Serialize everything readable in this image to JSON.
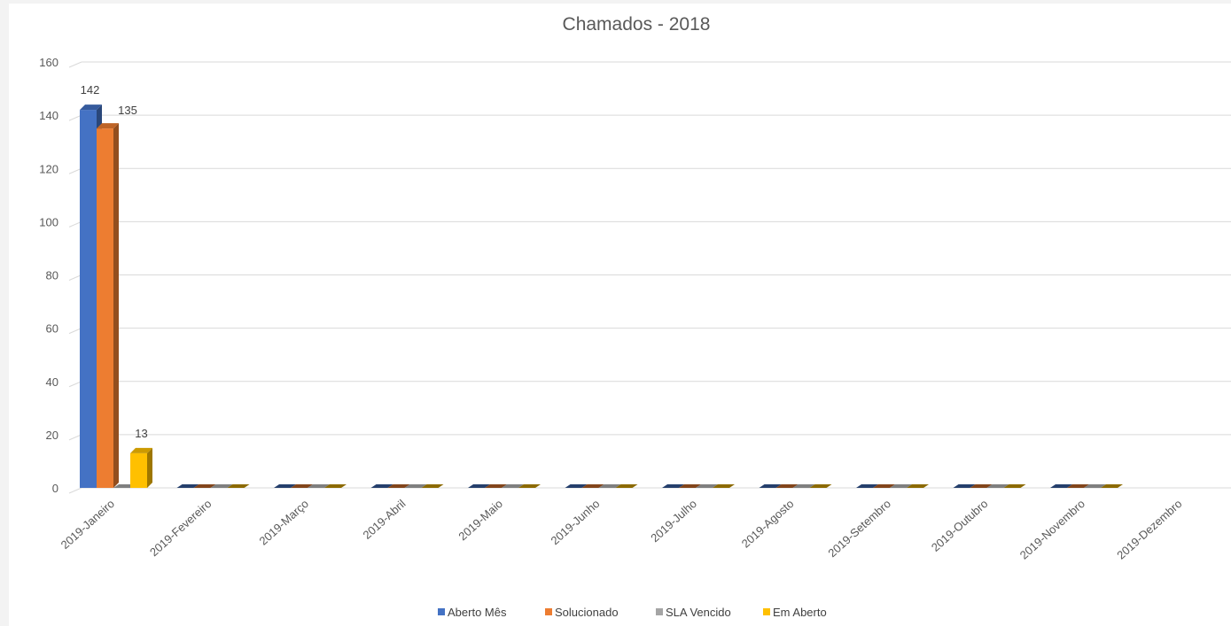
{
  "chart_data": {
    "type": "bar",
    "variant": "3d-clustered-column",
    "title": "Chamados - 2018",
    "xlabel": "",
    "ylabel": "",
    "ylim": [
      0,
      160
    ],
    "y_ticks": [
      0,
      20,
      40,
      60,
      80,
      100,
      120,
      140,
      160
    ],
    "grid": true,
    "legend_position": "bottom",
    "categories": [
      "2019-Janeiro",
      "2019-Fevereiro",
      "2019-Março",
      "2019-Abril",
      "2019-Maio",
      "2019-Junho",
      "2019-Julho",
      "2019-Agosto",
      "2019-Setembro",
      "2019-Outubro",
      "2019-Novembro",
      "2019-Dezembro"
    ],
    "series": [
      {
        "name": "Aberto Mês",
        "color": "#4472c4",
        "values": [
          142,
          0,
          0,
          0,
          0,
          0,
          0,
          0,
          0,
          0,
          0,
          null
        ],
        "data_labels": [
          "142"
        ]
      },
      {
        "name": "Solucionado",
        "color": "#ed7d31",
        "values": [
          135,
          0,
          0,
          0,
          0,
          0,
          0,
          0,
          0,
          0,
          0,
          null
        ],
        "data_labels": [
          "135"
        ]
      },
      {
        "name": "SLA Vencido",
        "color": "#a5a5a5",
        "values": [
          0,
          0,
          0,
          0,
          0,
          0,
          0,
          0,
          0,
          0,
          0,
          null
        ],
        "data_labels": []
      },
      {
        "name": "Em Aberto",
        "color": "#ffc000",
        "values": [
          13,
          0,
          0,
          0,
          0,
          0,
          0,
          0,
          0,
          0,
          0,
          null
        ],
        "data_labels": [
          "13"
        ]
      }
    ]
  }
}
